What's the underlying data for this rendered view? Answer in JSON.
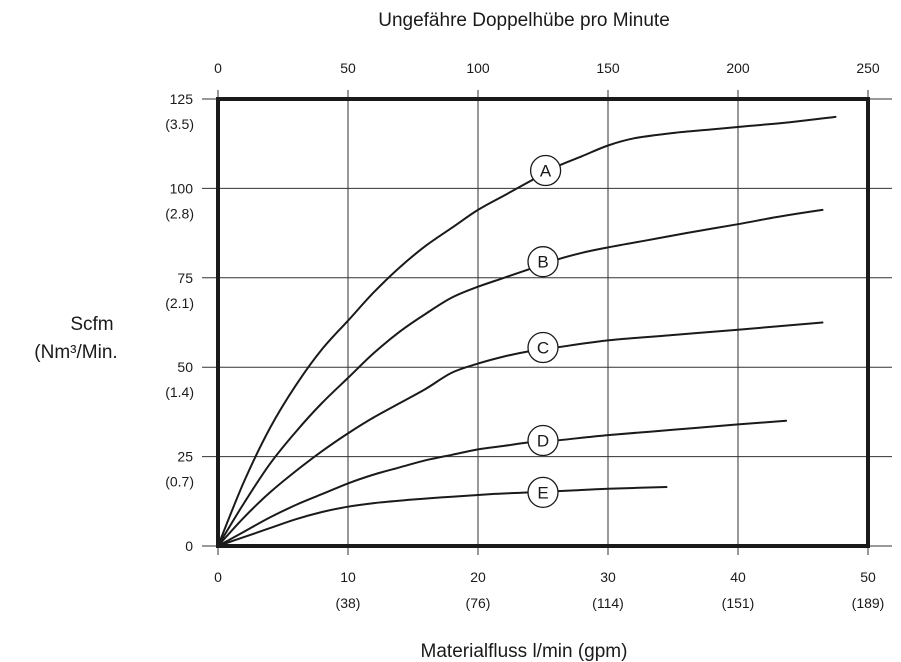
{
  "chart_data": {
    "type": "line",
    "top_axis": {
      "title": "Ungefähre Doppelhübe pro Minute",
      "range": [
        0,
        250
      ],
      "ticks": [
        "0",
        "50",
        "100",
        "150",
        "200",
        "250"
      ]
    },
    "x_axis": {
      "title": "Materialfluss l/min (gpm)",
      "range": [
        0,
        50
      ],
      "ticks": [
        {
          "value": 0,
          "label": "0",
          "sub": ""
        },
        {
          "value": 10,
          "label": "10",
          "sub": "(38)"
        },
        {
          "value": 20,
          "label": "20",
          "sub": "(76)"
        },
        {
          "value": 30,
          "label": "30",
          "sub": "(114)"
        },
        {
          "value": 40,
          "label": "40",
          "sub": "(151)"
        },
        {
          "value": 50,
          "label": "50",
          "sub": "(189)"
        }
      ]
    },
    "y_axis": {
      "title_line1": "Scfm",
      "title_line2": "(Nm³/Min.",
      "range": [
        0,
        125
      ],
      "ticks": [
        {
          "value": 0,
          "label": "0",
          "sub": ""
        },
        {
          "value": 25,
          "label": "25",
          "sub": "(0.7)"
        },
        {
          "value": 50,
          "label": "50",
          "sub": "(1.4)"
        },
        {
          "value": 75,
          "label": "75",
          "sub": "(2.1)"
        },
        {
          "value": 100,
          "label": "100",
          "sub": "(2.8)"
        },
        {
          "value": 125,
          "label": "125",
          "sub": "(3.5)"
        }
      ]
    },
    "grid": true,
    "series": [
      {
        "name": "A",
        "label_at": [
          25.2,
          105
        ],
        "x": [
          0,
          2,
          4,
          6,
          8,
          10,
          12,
          14,
          16,
          18,
          20,
          22,
          24,
          26,
          28,
          30,
          32,
          35,
          38,
          41,
          44,
          47.5
        ],
        "y": [
          0,
          18,
          33,
          45,
          55,
          63,
          71,
          78,
          84,
          89,
          94,
          98,
          102,
          106,
          109,
          112,
          114,
          115.5,
          116.5,
          117.5,
          118.5,
          120
        ]
      },
      {
        "name": "B",
        "label_at": [
          25,
          79.5
        ],
        "x": [
          0,
          2,
          4,
          6,
          8,
          10,
          12,
          14,
          16,
          18,
          20,
          22,
          24,
          26,
          28,
          30,
          33,
          36,
          40,
          43,
          46.5
        ],
        "y": [
          0,
          12,
          23,
          32,
          40,
          47,
          54,
          60,
          65,
          69.5,
          72.5,
          75,
          77.5,
          80,
          82,
          83.5,
          85.5,
          87.5,
          90,
          92,
          94
        ]
      },
      {
        "name": "C",
        "label_at": [
          25,
          55.5
        ],
        "x": [
          0,
          2,
          4,
          6,
          8,
          10,
          12,
          14,
          16,
          18,
          20,
          22,
          24,
          26,
          30,
          35,
          40,
          46.5
        ],
        "y": [
          0,
          8,
          15,
          21,
          26.5,
          31.5,
          36,
          40,
          44,
          48.5,
          51,
          53,
          54.5,
          55.5,
          57.5,
          59,
          60.5,
          62.5
        ]
      },
      {
        "name": "D",
        "label_at": [
          25,
          29.5
        ],
        "x": [
          0,
          2,
          4,
          6,
          8,
          10,
          12,
          14,
          16,
          18,
          20,
          22,
          24,
          26,
          30,
          35,
          40,
          43.7
        ],
        "y": [
          0,
          4,
          8,
          11.5,
          14.5,
          17.5,
          20,
          22,
          24,
          25.5,
          27,
          28,
          29,
          29.5,
          31,
          32.5,
          34,
          35
        ]
      },
      {
        "name": "E",
        "label_at": [
          25,
          15
        ],
        "x": [
          0,
          2,
          4,
          6,
          8,
          10,
          12,
          15,
          18,
          21,
          24,
          27,
          30,
          34.5
        ],
        "y": [
          0,
          2.5,
          5,
          7.5,
          9.5,
          11,
          12,
          13,
          13.8,
          14.5,
          15,
          15.5,
          16,
          16.5
        ]
      }
    ]
  }
}
